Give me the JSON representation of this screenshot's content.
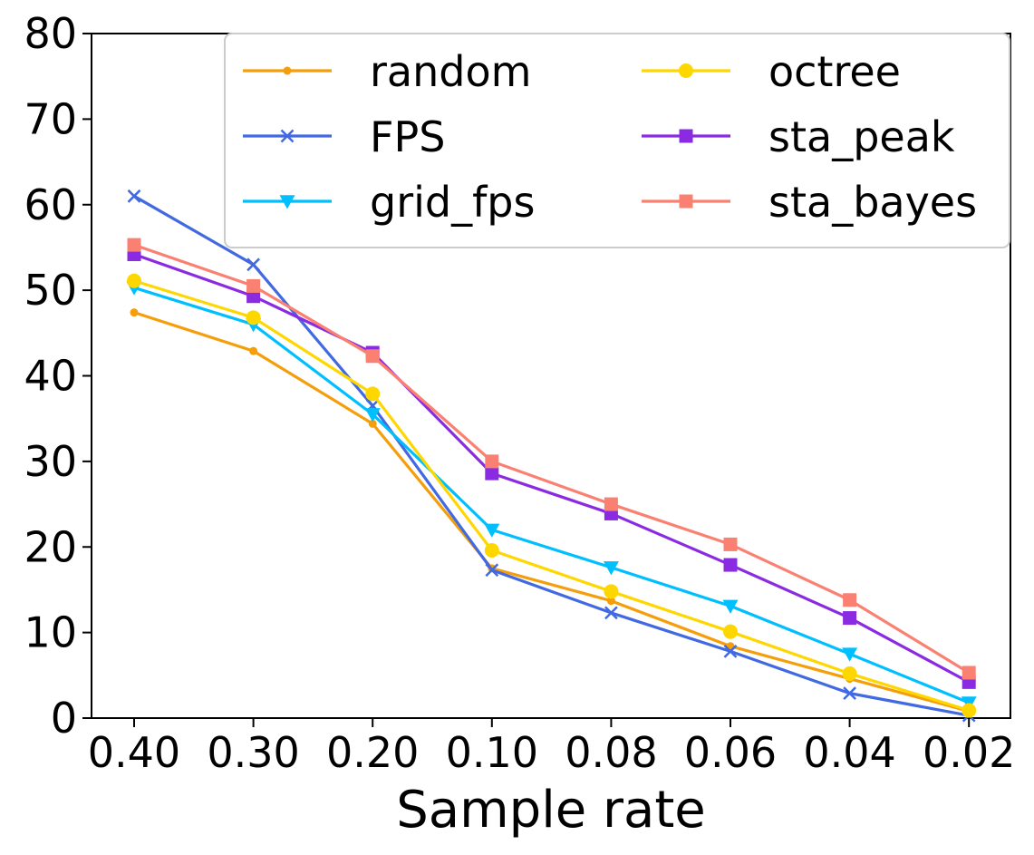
{
  "chart_data": {
    "type": "line",
    "title": "",
    "xlabel": "Sample rate",
    "ylabel": "",
    "x": [
      "0.40",
      "0.30",
      "0.20",
      "0.10",
      "0.08",
      "0.06",
      "0.04",
      "0.02"
    ],
    "ylim": [
      0,
      80
    ],
    "yticks": [
      "0",
      "10",
      "20",
      "30",
      "40",
      "50",
      "60",
      "70",
      "80"
    ],
    "grid": false,
    "legend_position": "top-right",
    "series": [
      {
        "name": "random",
        "color": "#f59e0b",
        "marker": "dot",
        "values": [
          47.4,
          42.9,
          34.4,
          17.5,
          13.7,
          8.4,
          4.6,
          0.8
        ]
      },
      {
        "name": "FPS",
        "color": "#4169e1",
        "marker": "x",
        "values": [
          61.0,
          53.0,
          36.5,
          17.3,
          12.3,
          7.8,
          2.9,
          0.3
        ]
      },
      {
        "name": "grid_fps",
        "color": "#00bfff",
        "marker": "triangle-down",
        "values": [
          50.3,
          46.0,
          35.5,
          22.0,
          17.6,
          13.1,
          7.5,
          1.8
        ]
      },
      {
        "name": "octree",
        "color": "#ffd700",
        "marker": "circle",
        "values": [
          51.1,
          46.8,
          37.9,
          19.6,
          14.8,
          10.1,
          5.2,
          0.9
        ]
      },
      {
        "name": "sta_peak",
        "color": "#8a2be2",
        "marker": "square",
        "values": [
          54.2,
          49.3,
          42.7,
          28.6,
          23.9,
          17.9,
          11.7,
          4.2
        ]
      },
      {
        "name": "sta_bayes",
        "color": "#fa8072",
        "marker": "square",
        "values": [
          55.3,
          50.5,
          42.3,
          30.0,
          25.0,
          20.3,
          13.8,
          5.3
        ]
      }
    ]
  }
}
